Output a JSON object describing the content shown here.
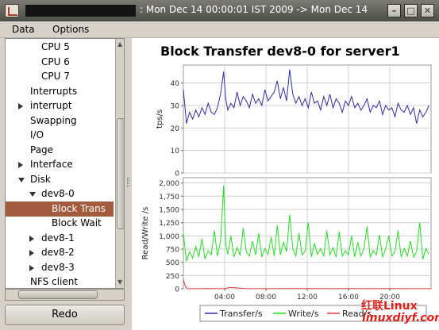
{
  "window": {
    "title": ": Mon Dec 14 00:00:01 IST 2009 -> Mon Dec 14",
    "controls": [
      "minimize",
      "maximize",
      "close"
    ]
  },
  "menu": [
    "Data",
    "Options"
  ],
  "tree": {
    "items": [
      {
        "label": "CPU 5",
        "level": 3,
        "toggle": ""
      },
      {
        "label": "CPU 6",
        "level": 3,
        "toggle": ""
      },
      {
        "label": "CPU 7",
        "level": 3,
        "toggle": ""
      },
      {
        "label": "Interrupts",
        "level": 2,
        "toggle": ""
      },
      {
        "label": "interrupt",
        "level": 2,
        "toggle": "collapsed"
      },
      {
        "label": "Swapping",
        "level": 2,
        "toggle": ""
      },
      {
        "label": "I/O",
        "level": 2,
        "toggle": ""
      },
      {
        "label": "Page",
        "level": 2,
        "toggle": ""
      },
      {
        "label": "Interface",
        "level": 2,
        "toggle": "collapsed"
      },
      {
        "label": "Disk",
        "level": 2,
        "toggle": "expanded"
      },
      {
        "label": "dev8-0",
        "level": 3,
        "toggle": "expanded"
      },
      {
        "label": "Block Trans",
        "level": 4,
        "toggle": "",
        "selected": true
      },
      {
        "label": "Block Wait",
        "level": 4,
        "toggle": ""
      },
      {
        "label": "dev8-1",
        "level": 3,
        "toggle": "collapsed"
      },
      {
        "label": "dev8-2",
        "level": 3,
        "toggle": "collapsed"
      },
      {
        "label": "dev8-3",
        "level": 3,
        "toggle": "collapsed"
      },
      {
        "label": "NFS client",
        "level": 2,
        "toggle": ""
      }
    ]
  },
  "redo_label": "Redo",
  "watermark": {
    "line1": "红联Linux",
    "line2": "linuxdiyf.com"
  },
  "chart_data": {
    "type": "line",
    "title": "Block Transfer dev8-0 for server1",
    "x_ticks": [
      "04:00",
      "08:00",
      "12:00",
      "16:00",
      "20:00"
    ],
    "x_tick_hours": [
      4,
      8,
      12,
      16,
      20
    ],
    "x_range_hours": [
      0,
      24
    ],
    "legend_position": "bottom",
    "colors": {
      "transfer": "#2d2da8",
      "write": "#22e022",
      "read": "#e03b3b"
    },
    "panels": [
      {
        "ylabel": "tps/s",
        "ylim": [
          0,
          48
        ],
        "y_ticks": [
          "0",
          "10",
          "20",
          "30",
          "40"
        ],
        "y_tick_values": [
          0,
          10,
          20,
          30,
          40
        ],
        "series": [
          {
            "name": "Transfer/s",
            "key": "transfer",
            "x": [
              0,
              0.3,
              0.6,
              0.9,
              1.2,
              1.5,
              1.8,
              2.1,
              2.4,
              2.7,
              3.0,
              3.3,
              3.6,
              3.9,
              4.1,
              4.3,
              4.6,
              4.9,
              5.2,
              5.5,
              5.8,
              6.1,
              6.4,
              6.7,
              7.0,
              7.3,
              7.6,
              7.9,
              8.2,
              8.5,
              8.8,
              9.1,
              9.4,
              9.7,
              10.0,
              10.3,
              10.6,
              10.9,
              11.2,
              11.5,
              11.8,
              12.1,
              12.4,
              12.7,
              13.0,
              13.3,
              13.6,
              13.9,
              14.2,
              14.5,
              14.8,
              15.1,
              15.4,
              15.7,
              16.0,
              16.3,
              16.6,
              16.9,
              17.2,
              17.5,
              17.8,
              18.1,
              18.4,
              18.7,
              19.0,
              19.3,
              19.6,
              19.9,
              20.2,
              20.5,
              20.8,
              21.1,
              21.4,
              21.7,
              22.0,
              22.3,
              22.6,
              22.9,
              23.2,
              23.5,
              23.8
            ],
            "values": [
              37,
              22,
              27,
              24,
              28,
              25,
              29,
              26,
              31,
              27,
              26,
              29,
              35,
              45,
              33,
              28,
              31,
              29,
              36,
              30,
              34,
              32,
              29,
              35,
              31,
              33,
              30,
              37,
              32,
              34,
              36,
              41,
              33,
              38,
              32,
              46,
              35,
              31,
              34,
              30,
              33,
              29,
              36,
              31,
              32,
              28,
              34,
              30,
              35,
              29,
              33,
              31,
              27,
              32,
              30,
              34,
              29,
              31,
              28,
              30,
              33,
              27,
              30,
              29,
              32,
              26,
              30,
              28,
              29,
              25,
              31,
              28,
              27,
              30,
              26,
              29,
              22,
              28,
              25,
              27,
              30
            ]
          }
        ]
      },
      {
        "ylabel": "Read/Write /s",
        "ylim": [
          0,
          2100
        ],
        "y_ticks": [
          "0",
          "250",
          "500",
          "750",
          "1,000",
          "1,250",
          "1,500",
          "1,750",
          "2,000"
        ],
        "y_tick_values": [
          0,
          250,
          500,
          750,
          1000,
          1250,
          1500,
          1750,
          2000
        ],
        "series": [
          {
            "name": "Write/s",
            "key": "write",
            "x": [
              0,
              0.3,
              0.6,
              0.9,
              1.2,
              1.5,
              1.8,
              2.1,
              2.4,
              2.7,
              3.0,
              3.3,
              3.6,
              3.9,
              4.1,
              4.3,
              4.6,
              4.9,
              5.2,
              5.5,
              5.8,
              6.1,
              6.4,
              6.7,
              7.0,
              7.3,
              7.6,
              7.9,
              8.2,
              8.5,
              8.8,
              9.1,
              9.4,
              9.7,
              10.0,
              10.3,
              10.6,
              10.9,
              11.2,
              11.5,
              11.8,
              12.1,
              12.4,
              12.7,
              13.0,
              13.3,
              13.6,
              13.9,
              14.2,
              14.5,
              14.8,
              15.1,
              15.4,
              15.7,
              16.0,
              16.3,
              16.6,
              16.9,
              17.2,
              17.5,
              17.8,
              18.1,
              18.4,
              18.7,
              19.0,
              19.3,
              19.6,
              19.9,
              20.2,
              20.5,
              20.8,
              21.1,
              21.4,
              21.7,
              22.0,
              22.3,
              22.6,
              22.9,
              23.2,
              23.5,
              23.8
            ],
            "values": [
              1050,
              520,
              700,
              580,
              800,
              600,
              950,
              560,
              720,
              640,
              1100,
              620,
              900,
              1950,
              850,
              650,
              1000,
              600,
              780,
              640,
              1150,
              700,
              620,
              900,
              640,
              1050,
              600,
              760,
              650,
              980,
              620,
              1200,
              640,
              880,
              700,
              1400,
              760,
              620,
              1050,
              640,
              720,
              1250,
              600,
              860,
              650,
              760,
              620,
              1100,
              640,
              780,
              600,
              1080,
              620,
              720,
              640,
              1000,
              600,
              880,
              620,
              760,
              1180,
              600,
              720,
              640,
              1020,
              600,
              760,
              1000,
              620,
              700,
              1100,
              600,
              760,
              620,
              900,
              600,
              700,
              1250,
              560,
              760,
              650
            ]
          },
          {
            "name": "Read/s",
            "key": "read",
            "x": [
              0,
              0.2,
              0.4,
              0.8,
              2,
              4,
              4.5,
              6,
              8,
              10,
              12,
              14,
              16,
              18,
              20,
              22,
              24
            ],
            "values": [
              170,
              40,
              5,
              2,
              3,
              2,
              25,
              3,
              2,
              4,
              3,
              2,
              3,
              2,
              3,
              2,
              2
            ]
          }
        ]
      }
    ]
  }
}
